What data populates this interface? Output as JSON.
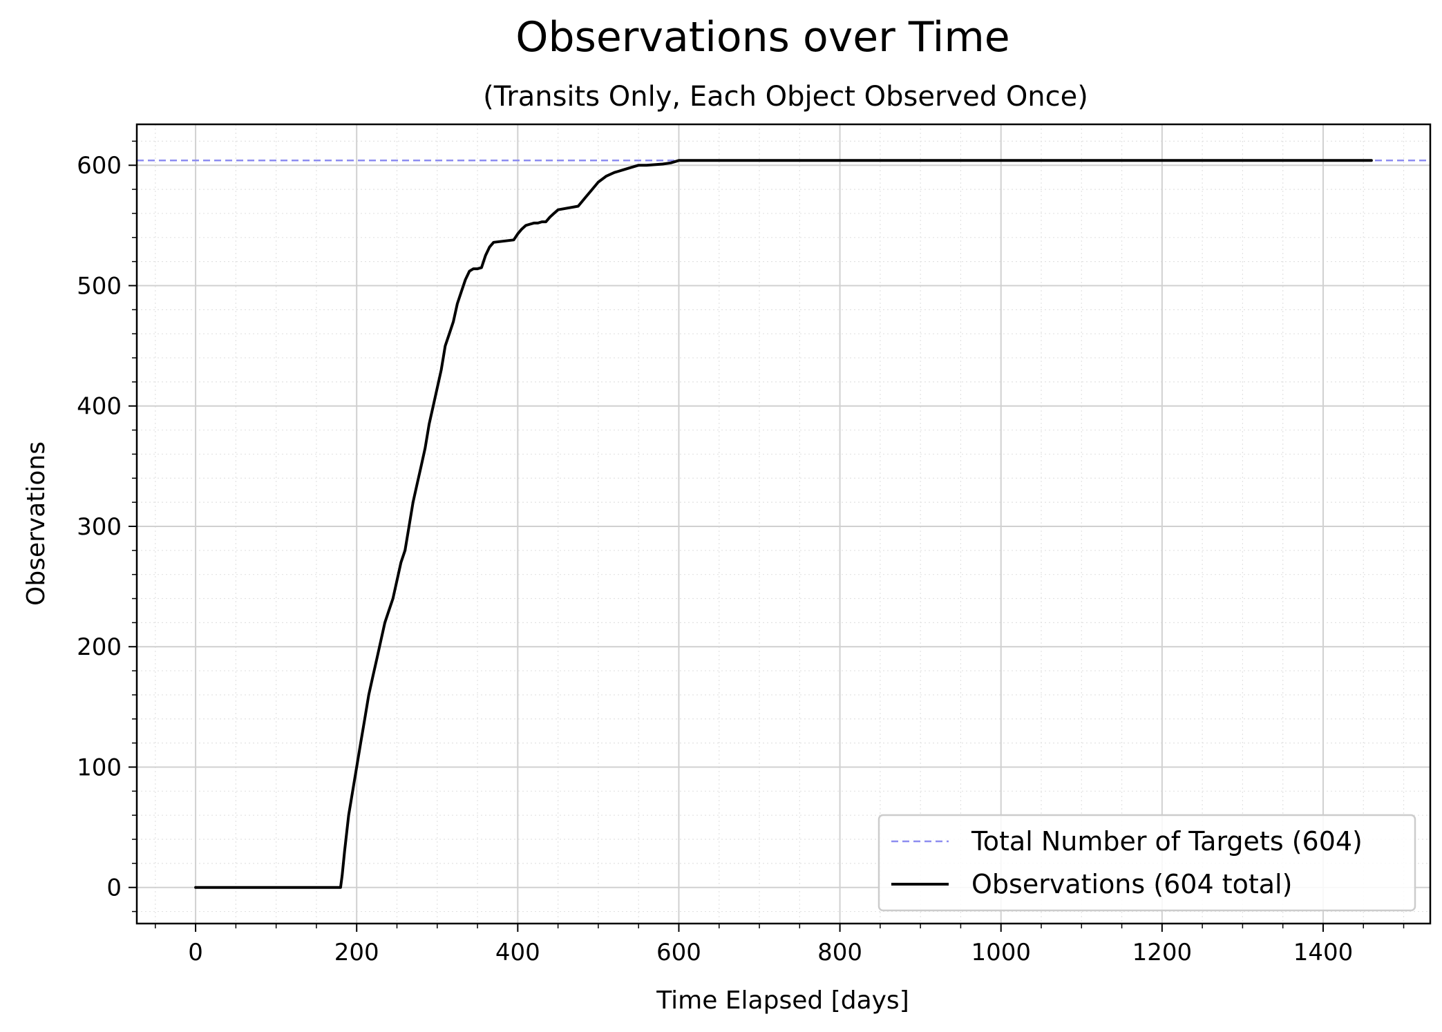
{
  "chart_data": {
    "type": "line",
    "title": "Observations over Time",
    "subtitle": "(Transits Only, Each Object Observed Once)",
    "xlabel": "Time Elapsed [days]",
    "ylabel": "Observations",
    "xlim": [
      -73,
      1533
    ],
    "ylim": [
      -30,
      634
    ],
    "xticks": [
      0,
      200,
      400,
      600,
      800,
      1000,
      1200,
      1400
    ],
    "yticks": [
      0,
      100,
      200,
      300,
      400,
      500,
      600
    ],
    "xtick_labels": [
      "0",
      "200",
      "400",
      "600",
      "800",
      "1000",
      "1200",
      "1400"
    ],
    "ytick_labels": [
      "0",
      "100",
      "200",
      "300",
      "400",
      "500",
      "600"
    ],
    "grid": true,
    "legend_position": "bottom-right",
    "series": [
      {
        "name": "Total Number of Targets (604)",
        "style": "dashed",
        "color": "#8c8cf0",
        "y": 604
      },
      {
        "name": "Observations (604 total)",
        "style": "solid",
        "color": "#000000",
        "x": [
          0,
          180,
          182,
          185,
          190,
          195,
          200,
          205,
          210,
          215,
          220,
          225,
          230,
          235,
          240,
          245,
          250,
          255,
          260,
          265,
          270,
          275,
          280,
          285,
          290,
          295,
          300,
          305,
          310,
          315,
          320,
          325,
          330,
          335,
          340,
          345,
          350,
          355,
          360,
          365,
          370,
          395,
          400,
          405,
          410,
          415,
          420,
          425,
          430,
          435,
          440,
          445,
          450,
          475,
          480,
          485,
          490,
          500,
          510,
          520,
          525,
          530,
          540,
          550,
          560,
          580,
          590,
          600,
          620,
          640,
          650,
          660,
          670,
          680,
          700,
          800,
          1000,
          1200,
          1460
        ],
        "y": [
          0,
          0,
          10,
          30,
          60,
          80,
          100,
          120,
          140,
          160,
          175,
          190,
          205,
          220,
          230,
          240,
          255,
          270,
          280,
          300,
          320,
          335,
          350,
          365,
          385,
          400,
          415,
          430,
          450,
          460,
          470,
          485,
          495,
          505,
          512,
          514,
          514,
          515,
          525,
          532,
          536,
          538,
          543,
          547,
          550,
          551,
          552,
          552,
          553,
          553,
          557,
          560,
          563,
          566,
          570,
          574,
          578,
          586,
          591,
          594,
          595,
          596,
          598,
          600,
          600,
          601,
          602,
          604,
          604,
          604,
          604,
          604,
          604,
          604,
          604,
          604,
          604,
          604,
          604
        ]
      }
    ]
  }
}
